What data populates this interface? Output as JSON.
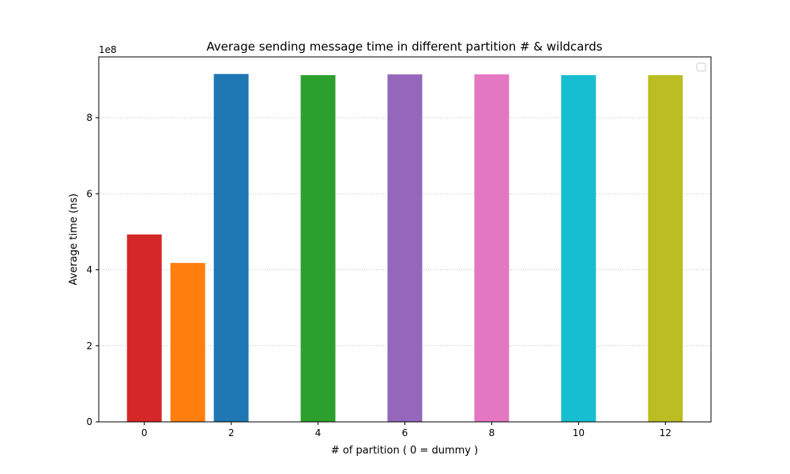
{
  "chart_data": {
    "type": "bar",
    "title": "Average sending message time in different partition # & wildcards",
    "xlabel": "# of partition ( 0 = dummy )",
    "ylabel": "Average time (ns)",
    "y_offset_label": "1e8",
    "xlim": [
      -1.05,
      13.05
    ],
    "ylim": [
      0,
      9.6
    ],
    "y_scale_note": "values in units of 1e8 ns",
    "x_ticks": [
      "0",
      "2",
      "4",
      "6",
      "8",
      "10",
      "12"
    ],
    "x_tick_values": [
      0,
      2,
      4,
      6,
      8,
      10,
      12
    ],
    "y_ticks": [
      "0",
      "2",
      "4",
      "6",
      "8"
    ],
    "y_tick_values": [
      0,
      2,
      4,
      6,
      8
    ],
    "grid": "horizontal-dotted",
    "legend": "top-right (empty)",
    "bars": [
      {
        "x": 0,
        "value": 4.93,
        "color": "#d62728"
      },
      {
        "x": 1,
        "value": 4.18,
        "color": "#ff7f0e"
      },
      {
        "x": 2,
        "value": 9.15,
        "color": "#1f77b4"
      },
      {
        "x": 4,
        "value": 9.12,
        "color": "#2ca02c"
      },
      {
        "x": 6,
        "value": 9.14,
        "color": "#9467bd"
      },
      {
        "x": 8,
        "value": 9.14,
        "color": "#e377c2"
      },
      {
        "x": 10,
        "value": 9.12,
        "color": "#17becf"
      },
      {
        "x": 12,
        "value": 9.12,
        "color": "#bcbd22"
      }
    ]
  }
}
